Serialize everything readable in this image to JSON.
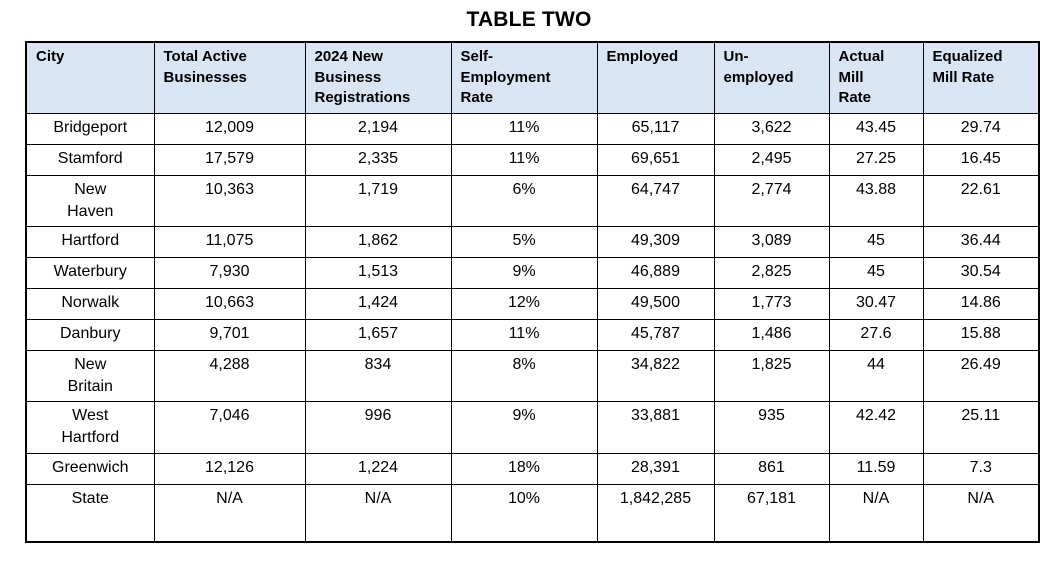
{
  "title": "TABLE TWO",
  "colors": {
    "header_background": "#d9e5f3",
    "border": "#000000",
    "text": "#000000"
  },
  "table": {
    "columns": [
      "City",
      "Total Active\nBusinesses",
      "2024 New\nBusiness\nRegistrations",
      "Self-\nEmployment\nRate",
      "Employed",
      "Un-\nemployed",
      "Actual\nMill\nRate",
      "Equalized\nMill Rate"
    ],
    "rows": [
      [
        "Bridgeport",
        "12,009",
        "2,194",
        "11%",
        "65,117",
        "3,622",
        "43.45",
        "29.74"
      ],
      [
        "Stamford",
        "17,579",
        "2,335",
        "11%",
        "69,651",
        "2,495",
        "27.25",
        "16.45"
      ],
      [
        "New\nHaven",
        "10,363",
        "1,719",
        "6%",
        "64,747",
        "2,774",
        "43.88",
        "22.61"
      ],
      [
        "Hartford",
        "11,075",
        "1,862",
        "5%",
        "49,309",
        "3,089",
        "45",
        "36.44"
      ],
      [
        "Waterbury",
        "7,930",
        "1,513",
        "9%",
        "46,889",
        "2,825",
        "45",
        "30.54"
      ],
      [
        "Norwalk",
        "10,663",
        "1,424",
        "12%",
        "49,500",
        "1,773",
        "30.47",
        "14.86"
      ],
      [
        "Danbury",
        "9,701",
        "1,657",
        "11%",
        "45,787",
        "1,486",
        "27.6",
        "15.88"
      ],
      [
        "New\nBritain",
        "4,288",
        "834",
        "8%",
        "34,822",
        "1,825",
        "44",
        "26.49"
      ],
      [
        "West\nHartford",
        "7,046",
        "996",
        "9%",
        "33,881",
        "935",
        "42.42",
        "25.11"
      ],
      [
        "Greenwich",
        "12,126",
        "1,224",
        "18%",
        "28,391",
        "861",
        "11.59",
        "7.3"
      ],
      [
        "State",
        "N/A",
        "N/A",
        "10%",
        "1,842,285",
        "67,181",
        "N/A",
        "N/A"
      ]
    ]
  }
}
